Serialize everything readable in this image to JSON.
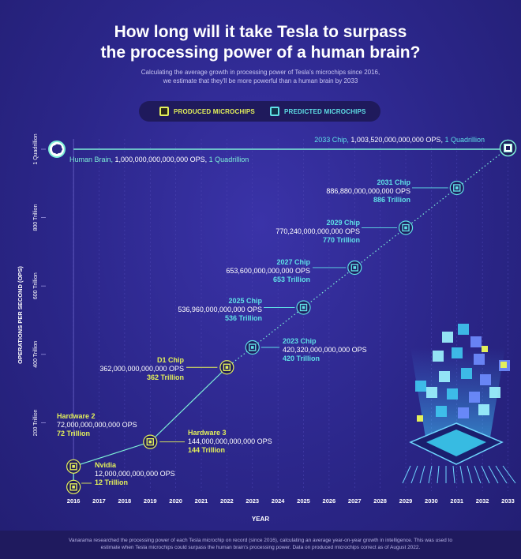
{
  "title_line1": "How long will it take Tesla to surpass",
  "title_line2": "the processing power of a human brain?",
  "subtitle_line1": "Calculating the average growth in processing power of Tesla's microchips since 2016,",
  "subtitle_line2": "we estimate that they'll be more powerful than a human brain by 2033",
  "legend": {
    "produced": "PRODUCED MICROCHIPS",
    "predicted": "PREDICTED MICROCHIPS"
  },
  "colors": {
    "produced": "#e3f05a",
    "predicted": "#5fe0e6",
    "brain_line": "#7ef0d8",
    "background": "#2a2585"
  },
  "human_brain": {
    "name": "Human Brain,",
    "ops": "1,000,000,000,000,000 OPS,",
    "unit": "1 Quadrillion",
    "icon": "brain-icon"
  },
  "chip_2033": {
    "name": "2033 Chip,",
    "ops": "1,003,520,000,000,000 OPS,",
    "unit": "1 Quadrillion"
  },
  "annotations": [
    {
      "id": "nvidia",
      "name": "Nvidia",
      "ops": "12,000,000,000,000 OPS",
      "tr": "12 Trillion",
      "kind": "prod"
    },
    {
      "id": "hw2",
      "name": "Hardware 2",
      "ops": "72,000,000,000,000 OPS",
      "tr": "72 Trillion",
      "kind": "prod"
    },
    {
      "id": "hw3",
      "name": "Hardware 3",
      "ops": "144,000,000,000,000 OPS",
      "tr": "144 Trillion",
      "kind": "prod"
    },
    {
      "id": "d1",
      "name": "D1 Chip",
      "ops": "362,000,000,000,000 OPS",
      "tr": "362 Trillion",
      "kind": "prod"
    },
    {
      "id": "c2023",
      "name": "2023 Chip",
      "ops": "420,320,000,000,000 OPS",
      "tr": "420 Trillion",
      "kind": "pred"
    },
    {
      "id": "c2025",
      "name": "2025 Chip",
      "ops": "536,960,000,000,000 OPS",
      "tr": "536 Trillion",
      "kind": "pred"
    },
    {
      "id": "c2027",
      "name": "2027 Chip",
      "ops": "653,600,000,000,000 OPS",
      "tr": "653 Trillion",
      "kind": "pred"
    },
    {
      "id": "c2029",
      "name": "2029 Chip",
      "ops": "770,240,000,000,000 OPS",
      "tr": "770 Trillion",
      "kind": "pred"
    },
    {
      "id": "c2031",
      "name": "2031 Chip",
      "ops": "886,880,000,000,000 OPS",
      "tr": "886 Trillion",
      "kind": "pred"
    }
  ],
  "footnote_line1": "Vanarama researched the processing power of each Tesla microchip on record (since 2016), calculating an average year-on-year growth in intelligence. This was used to",
  "footnote_line2": "estimate when Tesla microchips could surpass the human brain's processing power. Data on produced microchips correct as of August 2022.",
  "chart_data": {
    "type": "line",
    "title": "How long will it take Tesla to surpass the processing power of a human brain?",
    "xlabel": "YEAR",
    "ylabel": "OPERATIONS PER SECOND (OPS)",
    "x_ticks": [
      2016,
      2017,
      2018,
      2019,
      2020,
      2021,
      2022,
      2023,
      2024,
      2025,
      2026,
      2027,
      2028,
      2029,
      2030,
      2031,
      2032,
      2033
    ],
    "y_ticks": [
      {
        "value": 200,
        "label": "200 Trillion"
      },
      {
        "value": 400,
        "label": "400 Trillion"
      },
      {
        "value": 600,
        "label": "600 Trillion"
      },
      {
        "value": 800,
        "label": "800 Trillion"
      },
      {
        "value": 1000,
        "label": "1 Quadrillion"
      }
    ],
    "y_unit": "Trillion OPS",
    "ylim": [
      0,
      1030
    ],
    "xlim": [
      2015.1,
      2033.2
    ],
    "series": [
      {
        "name": "PRODUCED MICROCHIPS",
        "color": "#e3f05a",
        "points": [
          [
            2016,
            12
          ],
          [
            2016,
            72
          ],
          [
            2019,
            144
          ],
          [
            2022,
            362
          ]
        ]
      },
      {
        "name": "PREDICTED MICROCHIPS",
        "color": "#5fe0e6",
        "points": [
          [
            2023,
            420.32
          ],
          [
            2025,
            536.96
          ],
          [
            2027,
            653.6
          ],
          [
            2029,
            770.24
          ],
          [
            2031,
            886.88
          ],
          [
            2033,
            1003.52
          ]
        ]
      }
    ],
    "reference_line": {
      "name": "Human Brain",
      "value": 1000
    }
  }
}
